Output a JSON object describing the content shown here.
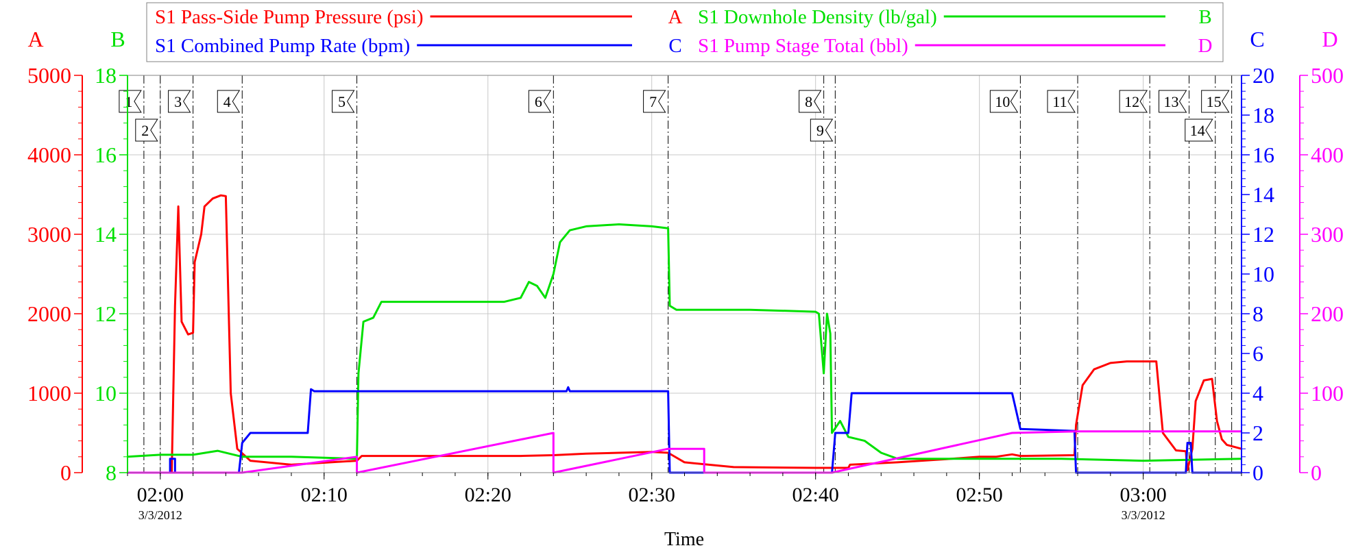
{
  "chart_data": {
    "type": "line",
    "xlabel": "Time",
    "x_range": [
      "01:58:00",
      "03:06:00"
    ],
    "x_ticks": [
      {
        "t": "02:00:00",
        "label": "02:00",
        "date": "3/3/2012"
      },
      {
        "t": "02:10:00",
        "label": "02:10",
        "date": ""
      },
      {
        "t": "02:20:00",
        "label": "02:20",
        "date": ""
      },
      {
        "t": "02:30:00",
        "label": "02:30",
        "date": ""
      },
      {
        "t": "02:40:00",
        "label": "02:40",
        "date": ""
      },
      {
        "t": "02:50:00",
        "label": "02:50",
        "date": ""
      },
      {
        "t": "03:00:00",
        "label": "03:00",
        "date": "3/3/2012"
      }
    ],
    "axes": {
      "A": {
        "letter": "A",
        "color": "#ff0000",
        "range": [
          0,
          5000
        ],
        "ticks": [
          "0",
          "1000",
          "2000",
          "3000",
          "4000",
          "5000"
        ]
      },
      "B": {
        "letter": "B",
        "color": "#00e000",
        "range": [
          8,
          18
        ],
        "ticks": [
          "8",
          "10",
          "12",
          "14",
          "16",
          "18"
        ]
      },
      "C": {
        "letter": "C",
        "color": "#0000ff",
        "range": [
          0,
          20
        ],
        "ticks": [
          "0",
          "2",
          "4",
          "6",
          "8",
          "10",
          "12",
          "14",
          "16",
          "18",
          "20"
        ]
      },
      "D": {
        "letter": "D",
        "color": "#ff00ff",
        "range": [
          0,
          500
        ],
        "ticks": [
          "0",
          "100",
          "200",
          "300",
          "400",
          "500"
        ]
      }
    },
    "legend": [
      {
        "name": "S1 Pass-Side Pump Pressure (psi)",
        "axis": "A",
        "color": "#ff0000"
      },
      {
        "name": "S1 Downhole Density (lb/gal)",
        "axis": "B",
        "color": "#00e000"
      },
      {
        "name": "S1 Combined Pump Rate (bpm)",
        "axis": "C",
        "color": "#0000ff"
      },
      {
        "name": "S1 Pump Stage Total (bbl)",
        "axis": "D",
        "color": "#ff00ff"
      }
    ],
    "events": [
      {
        "label": "1",
        "t": "01:59:00"
      },
      {
        "label": "2",
        "t": "02:00:00"
      },
      {
        "label": "3",
        "t": "02:02:00"
      },
      {
        "label": "4",
        "t": "02:05:00"
      },
      {
        "label": "5",
        "t": "02:12:00"
      },
      {
        "label": "6",
        "t": "02:24:00"
      },
      {
        "label": "7",
        "t": "02:31:00"
      },
      {
        "label": "8",
        "t": "02:40:30"
      },
      {
        "label": "9",
        "t": "02:41:12"
      },
      {
        "label": "10",
        "t": "02:52:30"
      },
      {
        "label": "11",
        "t": "02:56:00"
      },
      {
        "label": "12",
        "t": "03:00:24"
      },
      {
        "label": "13",
        "t": "03:02:48"
      },
      {
        "label": "14",
        "t": "03:04:24"
      },
      {
        "label": "15",
        "t": "03:05:24"
      }
    ],
    "series": [
      {
        "name": "S1 Pass-Side Pump Pressure (psi)",
        "axis": "A",
        "color": "#ff0000",
        "points": [
          [
            "01:58:00",
            0
          ],
          [
            "02:00:42",
            0
          ],
          [
            "02:00:54",
            2100
          ],
          [
            "02:01:06",
            3350
          ],
          [
            "02:01:18",
            1900
          ],
          [
            "02:01:42",
            1740
          ],
          [
            "02:02:00",
            1760
          ],
          [
            "02:02:06",
            2650
          ],
          [
            "02:02:30",
            3000
          ],
          [
            "02:02:42",
            3350
          ],
          [
            "02:03:12",
            3450
          ],
          [
            "02:03:42",
            3490
          ],
          [
            "02:04:00",
            3480
          ],
          [
            "02:04:18",
            1000
          ],
          [
            "02:04:42",
            300
          ],
          [
            "02:05:30",
            150
          ],
          [
            "02:08:00",
            100
          ],
          [
            "02:12:00",
            150
          ],
          [
            "02:12:18",
            210
          ],
          [
            "02:18:00",
            210
          ],
          [
            "02:22:00",
            210
          ],
          [
            "02:24:00",
            220
          ],
          [
            "02:26:00",
            240
          ],
          [
            "02:28:00",
            250
          ],
          [
            "02:30:00",
            260
          ],
          [
            "02:31:00",
            250
          ],
          [
            "02:32:00",
            130
          ],
          [
            "02:35:00",
            70
          ],
          [
            "02:40:00",
            60
          ],
          [
            "02:41:00",
            60
          ],
          [
            "02:42:00",
            60
          ],
          [
            "02:42:06",
            100
          ],
          [
            "02:45:00",
            130
          ],
          [
            "02:48:00",
            170
          ],
          [
            "02:50:00",
            200
          ],
          [
            "02:51:00",
            200
          ],
          [
            "02:52:00",
            230
          ],
          [
            "02:52:30",
            210
          ],
          [
            "02:55:48",
            220
          ],
          [
            "02:55:54",
            600
          ],
          [
            "02:56:18",
            1100
          ],
          [
            "02:57:00",
            1300
          ],
          [
            "02:58:00",
            1380
          ],
          [
            "02:59:00",
            1400
          ],
          [
            "03:00:00",
            1400
          ],
          [
            "03:00:48",
            1400
          ],
          [
            "03:01:12",
            500
          ],
          [
            "03:02:00",
            280
          ],
          [
            "03:02:36",
            270
          ],
          [
            "03:02:42",
            30
          ],
          [
            "03:03:00",
            300
          ],
          [
            "03:03:12",
            900
          ],
          [
            "03:03:42",
            1160
          ],
          [
            "03:04:12",
            1180
          ],
          [
            "03:04:30",
            650
          ],
          [
            "03:04:48",
            420
          ],
          [
            "03:05:06",
            350
          ],
          [
            "03:06:00",
            300
          ]
        ]
      },
      {
        "name": "S1 Downhole Density (lb/gal)",
        "axis": "B",
        "color": "#00e000",
        "points": [
          [
            "01:58:00",
            8.4
          ],
          [
            "02:00:00",
            8.45
          ],
          [
            "02:02:00",
            8.45
          ],
          [
            "02:03:30",
            8.55
          ],
          [
            "02:05:00",
            8.4
          ],
          [
            "02:08:00",
            8.4
          ],
          [
            "02:12:00",
            8.35
          ],
          [
            "02:12:06",
            10.5
          ],
          [
            "02:12:24",
            11.8
          ],
          [
            "02:13:00",
            11.9
          ],
          [
            "02:13:30",
            12.3
          ],
          [
            "02:18:00",
            12.3
          ],
          [
            "02:21:00",
            12.3
          ],
          [
            "02:22:00",
            12.4
          ],
          [
            "02:22:30",
            12.8
          ],
          [
            "02:23:00",
            12.7
          ],
          [
            "02:23:30",
            12.4
          ],
          [
            "02:24:00",
            13.0
          ],
          [
            "02:24:24",
            13.8
          ],
          [
            "02:25:00",
            14.1
          ],
          [
            "02:26:00",
            14.2
          ],
          [
            "02:28:00",
            14.25
          ],
          [
            "02:30:00",
            14.2
          ],
          [
            "02:31:00",
            14.15
          ],
          [
            "02:31:06",
            12.2
          ],
          [
            "02:31:30",
            12.1
          ],
          [
            "02:36:00",
            12.1
          ],
          [
            "02:40:00",
            12.05
          ],
          [
            "02:40:12",
            12.0
          ],
          [
            "02:40:30",
            10.5
          ],
          [
            "02:40:42",
            12.0
          ],
          [
            "02:40:54",
            11.5
          ],
          [
            "02:41:00",
            9.0
          ],
          [
            "02:41:30",
            9.3
          ],
          [
            "02:42:00",
            8.9
          ],
          [
            "02:43:00",
            8.8
          ],
          [
            "02:44:00",
            8.5
          ],
          [
            "02:45:00",
            8.35
          ],
          [
            "02:50:00",
            8.35
          ],
          [
            "02:55:00",
            8.35
          ],
          [
            "03:00:00",
            8.3
          ],
          [
            "03:06:00",
            8.35
          ]
        ]
      },
      {
        "name": "S1 Combined Pump Rate (bpm)",
        "axis": "C",
        "color": "#0000ff",
        "points": [
          [
            "01:58:00",
            0
          ],
          [
            "02:00:36",
            0
          ],
          [
            "02:00:36",
            0.7
          ],
          [
            "02:00:54",
            0.7
          ],
          [
            "02:00:54",
            0
          ],
          [
            "02:04:48",
            0
          ],
          [
            "02:05:00",
            1.5
          ],
          [
            "02:05:30",
            2.0
          ],
          [
            "02:09:00",
            2.0
          ],
          [
            "02:09:12",
            4.2
          ],
          [
            "02:09:24",
            4.1
          ],
          [
            "02:24:48",
            4.1
          ],
          [
            "02:24:54",
            4.3
          ],
          [
            "02:25:00",
            4.1
          ],
          [
            "02:31:00",
            4.1
          ],
          [
            "02:31:06",
            0
          ],
          [
            "02:41:00",
            0
          ],
          [
            "02:41:12",
            2.0
          ],
          [
            "02:42:00",
            2.0
          ],
          [
            "02:42:12",
            4.0
          ],
          [
            "02:52:00",
            4.0
          ],
          [
            "02:52:30",
            2.2
          ],
          [
            "02:55:48",
            2.1
          ],
          [
            "02:55:54",
            0
          ],
          [
            "03:02:36",
            0
          ],
          [
            "03:02:42",
            1.5
          ],
          [
            "03:02:54",
            1.5
          ],
          [
            "03:03:00",
            0
          ],
          [
            "03:06:00",
            0
          ]
        ]
      },
      {
        "name": "S1 Pump Stage Total (bbl)",
        "axis": "D",
        "color": "#ff00ff",
        "points": [
          [
            "01:58:00",
            0
          ],
          [
            "02:05:00",
            0
          ],
          [
            "02:12:00",
            20
          ],
          [
            "02:12:00",
            0
          ],
          [
            "02:24:00",
            50
          ],
          [
            "02:24:00",
            0
          ],
          [
            "02:31:00",
            30
          ],
          [
            "02:33:12",
            30
          ],
          [
            "02:33:12",
            0
          ],
          [
            "02:41:00",
            0
          ],
          [
            "02:52:00",
            50
          ],
          [
            "02:56:00",
            52
          ],
          [
            "03:06:00",
            52
          ]
        ]
      }
    ],
    "grid": true
  }
}
